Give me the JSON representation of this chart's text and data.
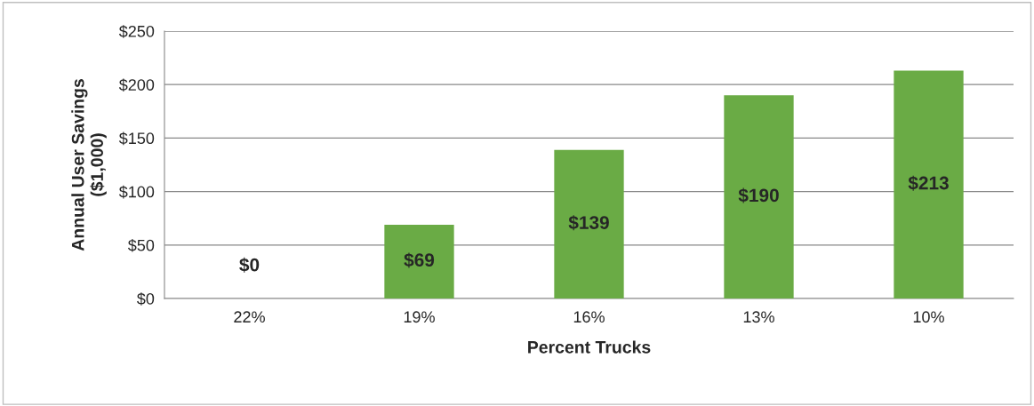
{
  "chart_data": {
    "type": "bar",
    "xlabel": "Percent Trucks",
    "ylabel": "Annual User Savings\n($1,000)",
    "categories": [
      "22%",
      "19%",
      "16%",
      "13%",
      "10%"
    ],
    "values": [
      0,
      69,
      139,
      190,
      213
    ],
    "value_labels": [
      "$0",
      "$69",
      "$139",
      "$190",
      "$213"
    ],
    "color": "#6aab45",
    "ylim": [
      0,
      250
    ],
    "yticks": [
      {
        "value": 0,
        "label": "$0"
      },
      {
        "value": 50,
        "label": "$50"
      },
      {
        "value": 100,
        "label": "$100"
      },
      {
        "value": 150,
        "label": "$150"
      },
      {
        "value": 200,
        "label": "$200"
      },
      {
        "value": 250,
        "label": "$250"
      }
    ],
    "grid": "y",
    "legend": false
  }
}
